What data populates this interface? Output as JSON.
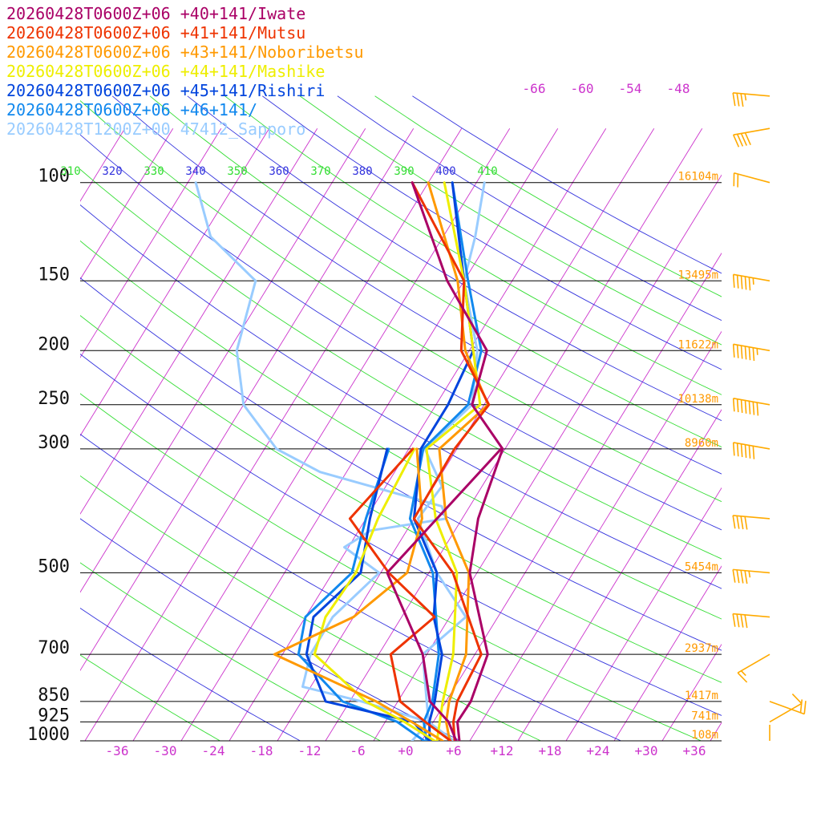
{
  "chart_data": {
    "type": "line",
    "chart_kind": "skew-t log-p sounding",
    "xlabel": "",
    "ylabel": "",
    "temperature_ticks": [
      "-36",
      "-30",
      "-24",
      "-18",
      "-12",
      "-6",
      "+0",
      "+6",
      "+12",
      "+18",
      "+24",
      "+30",
      "+36"
    ],
    "temperature_tick_values": [
      -36,
      -30,
      -24,
      -18,
      -12,
      -6,
      0,
      6,
      12,
      18,
      24,
      30,
      36
    ],
    "pressure_levels": [
      {
        "p": 100,
        "label": "100",
        "height": "16104m"
      },
      {
        "p": 150,
        "label": "150",
        "height": "13495m"
      },
      {
        "p": 200,
        "label": "200",
        "height": "11622m"
      },
      {
        "p": 250,
        "label": "250",
        "height": "10138m"
      },
      {
        "p": 300,
        "label": "300",
        "height": "8960m"
      },
      {
        "p": 500,
        "label": "500",
        "height": "5454m"
      },
      {
        "p": 700,
        "label": "700",
        "height": "2937m"
      },
      {
        "p": 850,
        "label": "850",
        "height": "1417m"
      },
      {
        "p": 925,
        "label": "925",
        "height": "741m"
      },
      {
        "p": 1000,
        "label": "1000",
        "height": "108m"
      }
    ],
    "theta_labels": [
      {
        "value": "310",
        "color": "#33dd33"
      },
      {
        "value": "320",
        "color": "#3333dd"
      },
      {
        "value": "330",
        "color": "#33dd33"
      },
      {
        "value": "340",
        "color": "#3333dd"
      },
      {
        "value": "350",
        "color": "#33dd33"
      },
      {
        "value": "360",
        "color": "#3333dd"
      },
      {
        "value": "370",
        "color": "#33dd33"
      },
      {
        "value": "380",
        "color": "#3333dd"
      },
      {
        "value": "390",
        "color": "#33dd33"
      },
      {
        "value": "400",
        "color": "#3333dd"
      },
      {
        "value": "410",
        "color": "#33dd33"
      }
    ],
    "upper_isotherm_labels": [
      "-66",
      "-60",
      "-54",
      "-48"
    ],
    "series": [
      {
        "name": "20260428T0600Z+06 +40+141/Iwate",
        "color": "#aa0066",
        "temperature": [
          [
            1000,
            6.7
          ],
          [
            925,
            5.0
          ],
          [
            850,
            5.1
          ],
          [
            700,
            3.6
          ],
          [
            500,
            -4.9
          ],
          [
            400,
            -8.0
          ],
          [
            300,
            -10.3
          ],
          [
            250,
            -17.5
          ],
          [
            200,
            -19.8
          ],
          [
            150,
            -30.1
          ],
          [
            100,
            -42.0
          ]
        ],
        "dewpoint": [
          [
            1000,
            6.3
          ],
          [
            925,
            3.9
          ],
          [
            850,
            0.0
          ],
          [
            700,
            -4.5
          ],
          [
            500,
            -15.2
          ],
          [
            300,
            -10.5
          ]
        ]
      },
      {
        "name": "20260428T0600Z+06 +41+141/Mutsu",
        "color": "#ee3300",
        "temperature": [
          [
            1000,
            6.1
          ],
          [
            925,
            4.5
          ],
          [
            850,
            3.4
          ],
          [
            700,
            2.8
          ],
          [
            500,
            -7.0
          ],
          [
            400,
            -16.0
          ],
          [
            300,
            -16.3
          ],
          [
            250,
            -15.4
          ],
          [
            200,
            -23.0
          ],
          [
            150,
            -28.0
          ],
          [
            100,
            -42.0
          ]
        ],
        "dewpoint": [
          [
            1000,
            5.6
          ],
          [
            925,
            1.0
          ],
          [
            850,
            -3.7
          ],
          [
            700,
            -8.5
          ],
          [
            600,
            -5.9
          ],
          [
            500,
            -15.0
          ],
          [
            400,
            -24.0
          ],
          [
            300,
            -21.5
          ]
        ]
      },
      {
        "name": "20260428T0600Z+06 +43+141/Noboribetsu",
        "color": "#ff9900",
        "temperature": [
          [
            1000,
            5.5
          ],
          [
            925,
            3.6
          ],
          [
            850,
            2.4
          ],
          [
            700,
            0.9
          ],
          [
            500,
            -5.0
          ],
          [
            400,
            -12.0
          ],
          [
            300,
            -18.2
          ],
          [
            250,
            -15.5
          ],
          [
            200,
            -22.5
          ],
          [
            150,
            -28.8
          ],
          [
            100,
            -40.0
          ]
        ],
        "dewpoint": [
          [
            1000,
            4.6
          ],
          [
            925,
            -0.7
          ],
          [
            850,
            -6.7
          ],
          [
            700,
            -23.0
          ],
          [
            600,
            -16.0
          ],
          [
            500,
            -12.7
          ],
          [
            400,
            -15.0
          ],
          [
            300,
            -21.0
          ]
        ]
      },
      {
        "name": "20260428T0600Z+06 +44+141/Mashike",
        "color": "#eeee00",
        "temperature": [
          [
            1000,
            3.9
          ],
          [
            925,
            2.8
          ],
          [
            850,
            1.6
          ],
          [
            700,
            -0.7
          ],
          [
            500,
            -6.5
          ],
          [
            400,
            -13.3
          ],
          [
            300,
            -19.8
          ],
          [
            250,
            -16.5
          ],
          [
            200,
            -21.5
          ],
          [
            150,
            -28.0
          ],
          [
            100,
            -38.0
          ]
        ],
        "dewpoint": [
          [
            1000,
            3.6
          ],
          [
            925,
            -1.6
          ],
          [
            850,
            -8.0
          ],
          [
            700,
            -18.0
          ],
          [
            600,
            -19.5
          ],
          [
            500,
            -19.1
          ],
          [
            400,
            -20.5
          ],
          [
            300,
            -21.3
          ]
        ]
      },
      {
        "name": "20260428T0600Z+06 +45+141/Rishiri",
        "color": "#0044dd",
        "temperature": [
          [
            1000,
            3.0
          ],
          [
            925,
            1.5
          ],
          [
            850,
            0.6
          ],
          [
            700,
            -2.1
          ],
          [
            600,
            -6.0
          ],
          [
            500,
            -9.0
          ],
          [
            400,
            -16.0
          ],
          [
            300,
            -20.5
          ],
          [
            250,
            -20.5
          ],
          [
            200,
            -21.5
          ],
          [
            150,
            -28.0
          ],
          [
            100,
            -37.0
          ]
        ],
        "dewpoint": [
          [
            1000,
            3.0
          ],
          [
            925,
            -0.5
          ],
          [
            850,
            -13.0
          ],
          [
            700,
            -19.0
          ],
          [
            600,
            -21.0
          ],
          [
            500,
            -18.5
          ],
          [
            400,
            -21.5
          ],
          [
            300,
            -24.7
          ]
        ]
      },
      {
        "name": "20260428T0600Z+06 +46+141/",
        "color": "#1188ee",
        "temperature": [
          [
            1000,
            2.6
          ],
          [
            925,
            0.8
          ],
          [
            850,
            0.3
          ],
          [
            700,
            -2.5
          ],
          [
            500,
            -9.5
          ],
          [
            400,
            -16.5
          ],
          [
            300,
            -20.2
          ],
          [
            250,
            -18.0
          ],
          [
            200,
            -20.5
          ],
          [
            150,
            -27.5
          ],
          [
            100,
            -37.0
          ]
        ],
        "dewpoint": [
          [
            1000,
            2.3
          ],
          [
            925,
            -2.5
          ],
          [
            850,
            -10.9
          ],
          [
            700,
            -20.0
          ],
          [
            600,
            -22.0
          ],
          [
            500,
            -19.6
          ],
          [
            400,
            -22.0
          ],
          [
            300,
            -24.5
          ]
        ]
      },
      {
        "name": "20260428T1200Z+00 47412_Sapporo",
        "color": "#99ccff",
        "temperature": [
          [
            1000,
            6.0
          ],
          [
            925,
            1.4
          ],
          [
            850,
            -0.4
          ],
          [
            700,
            -4.5
          ],
          [
            600,
            -2.0
          ],
          [
            500,
            -9.0
          ],
          [
            400,
            -15.5
          ],
          [
            350,
            -15.0
          ],
          [
            300,
            -20.0
          ],
          [
            250,
            -17.5
          ],
          [
            200,
            -21.0
          ],
          [
            150,
            -28.0
          ],
          [
            125,
            -30.0
          ],
          [
            100,
            -33.0
          ]
        ],
        "dewpoint": [
          [
            1000,
            0.8
          ],
          [
            925,
            1.4
          ],
          [
            850,
            -8.5
          ],
          [
            800,
            -17.0
          ],
          [
            700,
            -18.5
          ],
          [
            600,
            -18.6
          ],
          [
            500,
            -16.2
          ],
          [
            450,
            -22.5
          ],
          [
            420,
            -20.5
          ],
          [
            400,
            -12.0
          ],
          [
            380,
            -13.5
          ],
          [
            330,
            -31.3
          ],
          [
            300,
            -38.5
          ],
          [
            250,
            -46.0
          ],
          [
            200,
            -51.0
          ],
          [
            150,
            -54.0
          ],
          [
            125,
            -63.0
          ],
          [
            100,
            -69.0
          ]
        ]
      }
    ],
    "wind_barbs": [
      {
        "p": 100,
        "dir": 285,
        "speed": 20,
        "color": "#ffaa00"
      },
      {
        "p": 80,
        "dir": 260,
        "speed": 40,
        "color": "#ffaa00"
      },
      {
        "p": 70,
        "dir": 275,
        "speed": 35,
        "color": "#ffaa00"
      },
      {
        "p": 150,
        "dir": 280,
        "speed": 55,
        "color": "#ffaa00"
      },
      {
        "p": 200,
        "dir": 280,
        "speed": 65,
        "color": "#ffaa00"
      },
      {
        "p": 250,
        "dir": 280,
        "speed": 70,
        "color": "#ffaa00"
      },
      {
        "p": 300,
        "dir": 280,
        "speed": 60,
        "color": "#ffaa00"
      },
      {
        "p": 400,
        "dir": 275,
        "speed": 40,
        "color": "#ffaa00"
      },
      {
        "p": 500,
        "dir": 275,
        "speed": 45,
        "color": "#ffaa00"
      },
      {
        "p": 600,
        "dir": 275,
        "speed": 40,
        "color": "#ffaa00"
      },
      {
        "p": 700,
        "dir": 240,
        "speed": 15,
        "color": "#ffaa00"
      },
      {
        "p": 850,
        "dir": 110,
        "speed": 20,
        "color": "#ffaa00"
      },
      {
        "p": 925,
        "dir": 60,
        "speed": 10,
        "color": "#ffaa00"
      },
      {
        "p": 1000,
        "dir": 0,
        "speed": 0,
        "color": "#ffaa00"
      }
    ]
  }
}
